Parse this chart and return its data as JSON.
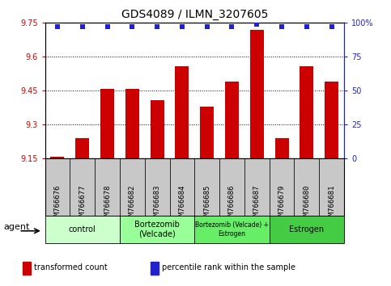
{
  "title": "GDS4089 / ILMN_3207605",
  "samples": [
    "GSM766676",
    "GSM766677",
    "GSM766678",
    "GSM766682",
    "GSM766683",
    "GSM766684",
    "GSM766685",
    "GSM766686",
    "GSM766687",
    "GSM766679",
    "GSM766680",
    "GSM766681"
  ],
  "bar_values": [
    9.16,
    9.24,
    9.46,
    9.46,
    9.41,
    9.56,
    9.38,
    9.49,
    9.72,
    9.24,
    9.56,
    9.49
  ],
  "percentile_values": [
    97,
    97,
    97,
    97,
    97,
    97,
    97,
    97,
    99,
    97,
    97,
    97
  ],
  "ylim_left": [
    9.15,
    9.75
  ],
  "ylim_right": [
    0,
    100
  ],
  "yticks_left": [
    9.15,
    9.3,
    9.45,
    9.6,
    9.75
  ],
  "ytick_labels_left": [
    "9.15",
    "9.3",
    "9.45",
    "9.6",
    "9.75"
  ],
  "yticks_right": [
    0,
    25,
    50,
    75,
    100
  ],
  "ytick_labels_right": [
    "0",
    "25",
    "50",
    "75",
    "100%"
  ],
  "bar_color": "#cc0000",
  "dot_color": "#2222cc",
  "plot_bg": "#ffffff",
  "grid_color": "#000000",
  "sample_box_color": "#c8c8c8",
  "groups": [
    {
      "label": "control",
      "start": 0,
      "end": 3,
      "color": "#ccffcc"
    },
    {
      "label": "Bortezomib\n(Velcade)",
      "start": 3,
      "end": 6,
      "color": "#99ff99"
    },
    {
      "label": "Bortezomib (Velcade) +\nEstrogen",
      "start": 6,
      "end": 9,
      "color": "#66ee66"
    },
    {
      "label": "Estrogen",
      "start": 9,
      "end": 12,
      "color": "#44cc44"
    }
  ],
  "legend_items": [
    {
      "color": "#cc0000",
      "label": "transformed count"
    },
    {
      "color": "#2222cc",
      "label": "percentile rank within the sample"
    }
  ],
  "agent_label": "agent",
  "title_fontsize": 10,
  "tick_fontsize": 7,
  "group_fontsize": 7,
  "legend_fontsize": 7
}
